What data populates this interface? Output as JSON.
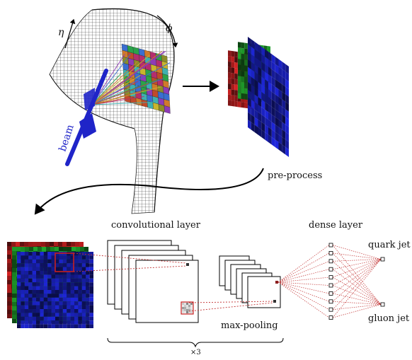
{
  "labels": {
    "eta": "η",
    "phi": "ϕ",
    "beam": "beam",
    "preprocess": "pre-process",
    "conv": "convolutional layer",
    "maxpool": "max-pooling",
    "dense": "dense layer",
    "quark": "quark jet",
    "gluon": "gluon jet",
    "repeat": "×3"
  },
  "colors": {
    "red_channel": "#c62020",
    "green_channel": "#1e9a2a",
    "blue_channel": "#1b22c4",
    "dashed_link": "#c23434",
    "beam": "#1f24c8",
    "mesh": "#333333"
  },
  "network": {
    "dense_nodes": 10,
    "output_nodes": 2
  }
}
